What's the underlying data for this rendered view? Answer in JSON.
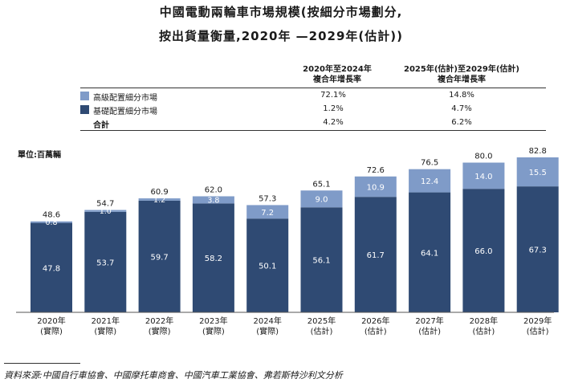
{
  "title_line1": "中國電動兩輪車市場規模(按細分市場劃分,",
  "title_line2": "按出貨量衡量,2020年 —2029年(估計))",
  "table": {
    "col1_header_l1": "2020年至2024年",
    "col1_header_l2": "複合年增長率",
    "col2_header_l1": "2025年(估計)至2029年(估計)",
    "col2_header_l2": "複合年增長率",
    "rows": [
      {
        "label": "高級配置細分市場",
        "cagr1": "72.1%",
        "cagr2": "14.8%"
      },
      {
        "label": "基礎配置細分市場",
        "cagr1": "1.2%",
        "cagr2": "4.7%"
      },
      {
        "label": "合計",
        "cagr1": "4.2%",
        "cagr2": "6.2%"
      }
    ]
  },
  "unit_label": "單位:百萬輛",
  "source": "資料來源:中國自行車協會、中國摩托車商會、中國汽車工業協會、弗若斯特沙利文分析",
  "colors": {
    "premium": "#7f9bc8",
    "basic": "#2f4a73",
    "axis": "#555555"
  },
  "chart_data": {
    "type": "bar",
    "stacked": true,
    "categories": [
      "2020年",
      "2021年",
      "2022年",
      "2023年",
      "2024年",
      "2025年",
      "2026年",
      "2027年",
      "2028年",
      "2029年"
    ],
    "sublabels": [
      "(實際)",
      "(實際)",
      "(實際)",
      "(實際)",
      "(實際)",
      "(估計)",
      "(估計)",
      "(估計)",
      "(估計)",
      "(估計)"
    ],
    "series": [
      {
        "name": "基礎配置細分市場",
        "values": [
          47.8,
          53.7,
          59.7,
          58.2,
          50.1,
          56.1,
          61.7,
          64.1,
          66.0,
          67.3
        ]
      },
      {
        "name": "高級配置細分市場",
        "values": [
          0.8,
          1.0,
          1.2,
          3.8,
          7.2,
          9.0,
          10.9,
          12.4,
          14.0,
          15.5
        ]
      }
    ],
    "totals": [
      48.6,
      54.7,
      60.9,
      62.0,
      57.3,
      65.1,
      72.6,
      76.5,
      80.0,
      82.8
    ],
    "ylim": [
      0,
      82.8
    ]
  }
}
